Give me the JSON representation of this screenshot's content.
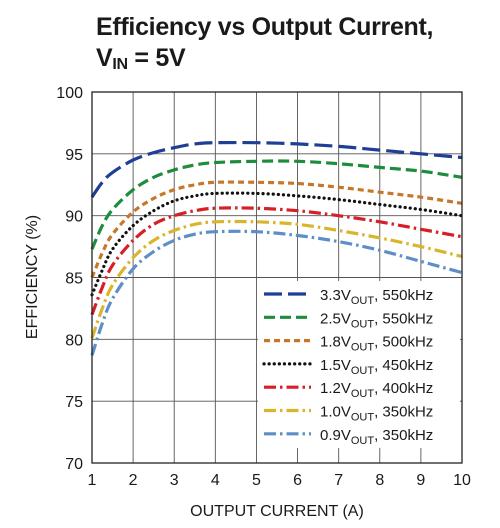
{
  "chart_data": {
    "type": "line",
    "title_line1": "Efficiency vs Output Current,",
    "title_line2_main": "V",
    "title_line2_sub": "IN",
    "title_line2_rest": " = 5V",
    "xlabel": "OUTPUT CURRENT (A)",
    "ylabel": "EFFICIENCY (%)",
    "xlim": [
      1,
      10
    ],
    "ylim": [
      70,
      100
    ],
    "x_ticks": [
      "1",
      "2",
      "3",
      "4",
      "5",
      "6",
      "7",
      "8",
      "9",
      "10"
    ],
    "y_ticks": [
      "70",
      "75",
      "80",
      "85",
      "90",
      "95",
      "100"
    ],
    "grid": true,
    "legend_position": "bottom-right",
    "x": [
      1,
      1.25,
      1.5,
      2,
      2.5,
      3,
      3.5,
      4,
      5,
      6,
      7,
      8,
      9,
      10
    ],
    "series": [
      {
        "label_v": "3.3V",
        "label_sub": "OUT",
        "label_rest": ", 550kHz",
        "color": "#1f3f96",
        "dash": "long",
        "values": [
          91.5,
          92.7,
          93.5,
          94.5,
          95.1,
          95.5,
          95.8,
          95.9,
          95.9,
          95.8,
          95.6,
          95.3,
          95.0,
          94.7
        ]
      },
      {
        "label_v": "2.5V",
        "label_sub": "OUT",
        "label_rest": ", 550kHz",
        "color": "#1d8c3c",
        "dash": "medium",
        "values": [
          87.3,
          89.2,
          90.5,
          92.1,
          93.1,
          93.7,
          94.1,
          94.3,
          94.4,
          94.4,
          94.2,
          93.9,
          93.6,
          93.1
        ]
      },
      {
        "label_v": "1.8V",
        "label_sub": "OUT",
        "label_rest": ", 500kHz",
        "color": "#c8772a",
        "dash": "short",
        "values": [
          85.0,
          87.0,
          88.5,
          90.3,
          91.4,
          92.1,
          92.5,
          92.7,
          92.7,
          92.6,
          92.3,
          91.9,
          91.5,
          91.0
        ]
      },
      {
        "label_v": "1.5V",
        "label_sub": "OUT",
        "label_rest": ", 450kHz",
        "color": "#111111",
        "dash": "dot",
        "values": [
          83.6,
          85.6,
          87.3,
          89.2,
          90.4,
          91.2,
          91.6,
          91.8,
          91.8,
          91.6,
          91.3,
          90.9,
          90.5,
          90.0
        ]
      },
      {
        "label_v": "1.2V",
        "label_sub": "OUT",
        "label_rest": ", 400kHz",
        "color": "#d61f26",
        "dash": "dashdot",
        "values": [
          82.0,
          84.2,
          86.0,
          88.0,
          89.3,
          90.0,
          90.4,
          90.6,
          90.6,
          90.4,
          90.0,
          89.5,
          88.9,
          88.3
        ]
      },
      {
        "label_v": "1.0V",
        "label_sub": "OUT",
        "label_rest": ", 350kHz",
        "color": "#d9b52e",
        "dash": "dashdot",
        "values": [
          80.1,
          82.5,
          84.4,
          86.6,
          88.0,
          88.8,
          89.3,
          89.5,
          89.5,
          89.3,
          88.8,
          88.2,
          87.5,
          86.7
        ]
      },
      {
        "label_v": "0.9V",
        "label_sub": "OUT",
        "label_rest": ", 350kHz",
        "color": "#5d8ec9",
        "dash": "dashdot",
        "values": [
          78.7,
          81.3,
          83.3,
          85.7,
          87.1,
          88.0,
          88.5,
          88.7,
          88.7,
          88.4,
          87.9,
          87.2,
          86.3,
          85.4
        ]
      }
    ]
  }
}
